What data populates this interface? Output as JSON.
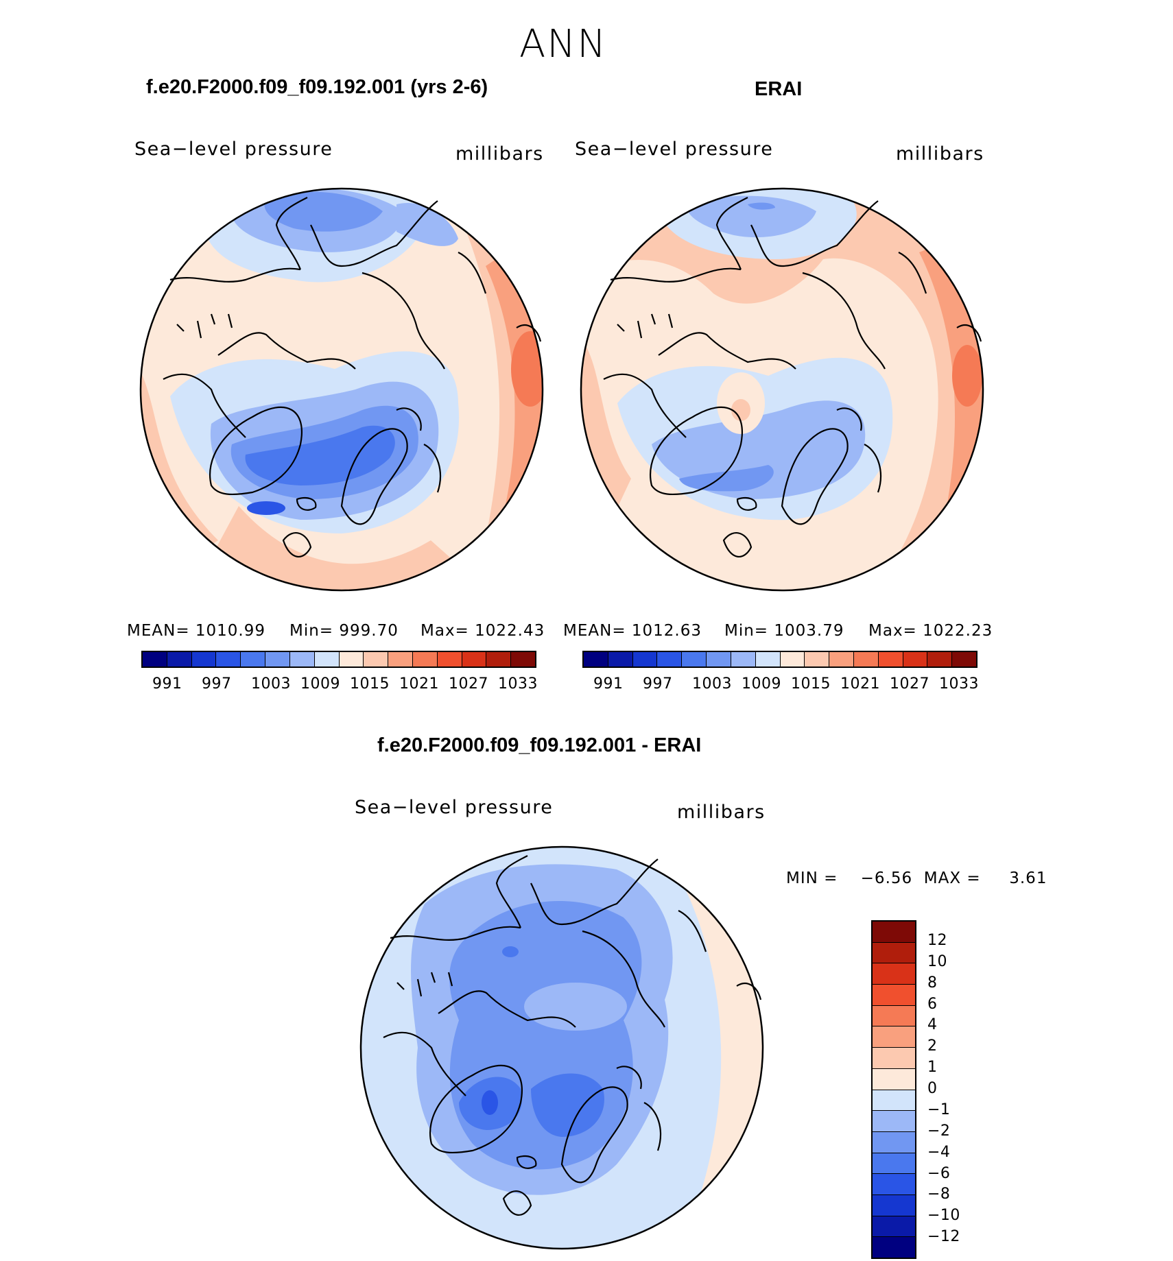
{
  "title": "ANN",
  "panels": [
    {
      "title": "f.e20.F2000.f09_f09.192.001 (yrs 2-6)",
      "left_label": "Sea−level pressure",
      "right_label": "millibars",
      "stats": {
        "mean": "MEAN=  1010.99",
        "min": "Min=  999.70",
        "max": "Max=  1022.43"
      }
    },
    {
      "title": "ERAI",
      "left_label": "Sea−level pressure",
      "right_label": "millibars",
      "stats": {
        "mean": "MEAN=  1012.63",
        "min": "Min=  1003.79",
        "max": "Max=  1022.23"
      }
    },
    {
      "title": "f.e20.F2000.f09_f09.192.001 - ERAI",
      "left_label": "Sea−level pressure",
      "right_label": "millibars",
      "stats": {
        "minmax": "MIN =    −6.56  MAX =     3.61"
      }
    }
  ],
  "abs_colorbar": {
    "colors": [
      "#000080",
      "#0a1aa8",
      "#1537d0",
      "#2a55e6",
      "#4a78ee",
      "#7197f2",
      "#9cb8f7",
      "#d2e4fb",
      "#fde9da",
      "#fcc9b0",
      "#f9a07e",
      "#f57a55",
      "#f0502e",
      "#d93218",
      "#b01e0c",
      "#7e0a06"
    ],
    "labels": [
      "991",
      "997",
      "1003",
      "1009",
      "1015",
      "1021",
      "1027",
      "1033"
    ]
  },
  "diff_colorbar": {
    "colors": [
      "#7e0a06",
      "#b01e0c",
      "#d93218",
      "#f0502e",
      "#f57a55",
      "#f9a07e",
      "#fcc9b0",
      "#fde9da",
      "#d2e4fb",
      "#9cb8f7",
      "#7197f2",
      "#4a78ee",
      "#2a55e6",
      "#1537d0",
      "#0a1aa8",
      "#000080"
    ],
    "labels": [
      "12",
      "10",
      "8",
      "6",
      "4",
      "2",
      "1",
      "0",
      "−1",
      "−2",
      "−4",
      "−6",
      "−8",
      "−10",
      "−12"
    ]
  }
}
